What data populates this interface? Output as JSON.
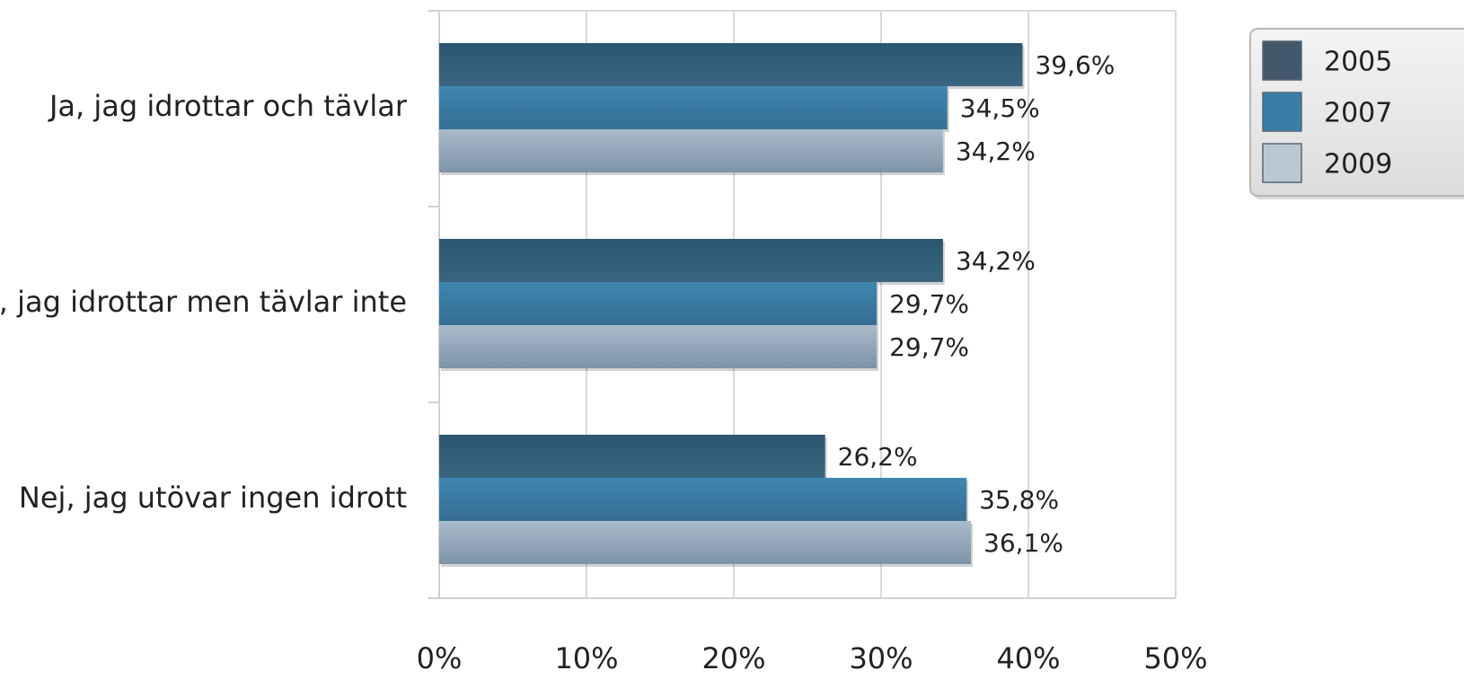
{
  "chart_data": {
    "type": "bar",
    "orientation": "horizontal",
    "title": "",
    "xlabel": "",
    "ylabel": "",
    "categories": [
      "Ja, jag idrottar och tävlar",
      "Ja, jag idrottar men tävlar inte",
      "Nej, jag utövar ingen idrott"
    ],
    "series": [
      {
        "name": "2005",
        "values": [
          39.6,
          34.2,
          26.2
        ],
        "labels": [
          "39,6%",
          "34,2%",
          "26,2%"
        ],
        "color": "#2f5a75"
      },
      {
        "name": "2007",
        "values": [
          34.5,
          29.7,
          35.8
        ],
        "labels": [
          "34,5%",
          "29,7%",
          "35,8%"
        ],
        "color": "#3b7fa6"
      },
      {
        "name": "2009",
        "values": [
          34.2,
          29.7,
          36.1
        ],
        "labels": [
          "34,2%",
          "29,7%",
          "36,1%"
        ],
        "color": "#9fb3c5"
      }
    ],
    "xlim": [
      0,
      50
    ],
    "x_ticks": [
      0,
      10,
      20,
      30,
      40,
      50
    ],
    "x_tick_labels": [
      "0%",
      "10%",
      "20%",
      "30%",
      "40%",
      "50%"
    ],
    "grid": true,
    "legend_position": "top-right"
  }
}
